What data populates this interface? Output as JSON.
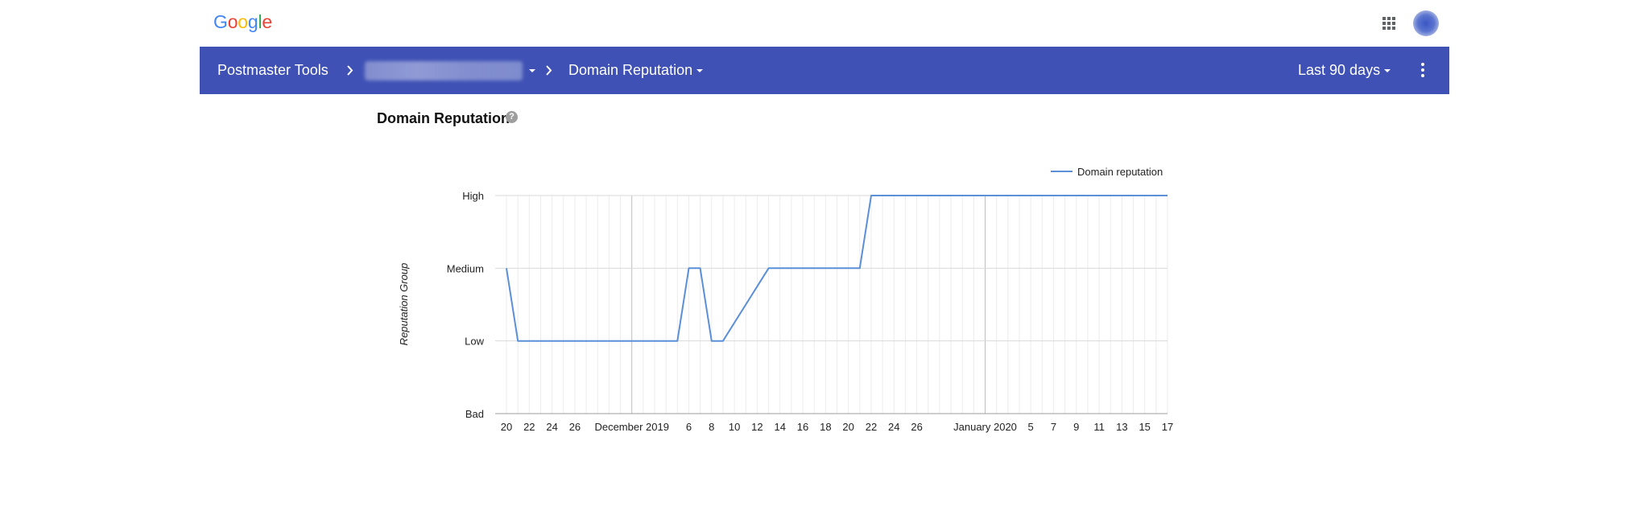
{
  "header": {
    "logo_text": "Google",
    "apps_icon": "apps-grid-icon",
    "avatar": "user-avatar"
  },
  "nav": {
    "product": "Postmaster Tools",
    "domain_value": "",
    "page": "Domain Reputation",
    "range": "Last 90 days",
    "more_icon": "more-vert-icon"
  },
  "section": {
    "title": "Domain Reputation",
    "help_icon": "help-icon"
  },
  "colors": {
    "nav_bg": "#3f51b5",
    "series_line": "#5b8fd8",
    "gridline": "#e0e0e0"
  },
  "chart_data": {
    "type": "line",
    "title": "",
    "ylabel": "Reputation Group",
    "xlabel": "",
    "y_categories": [
      "Bad",
      "Low",
      "Medium",
      "High"
    ],
    "x_tick_labels": [
      "20",
      "22",
      "24",
      "26",
      "December 2019",
      "6",
      "8",
      "10",
      "12",
      "14",
      "16",
      "18",
      "20",
      "22",
      "24",
      "26",
      "January 2020",
      "5",
      "7",
      "9",
      "11",
      "13",
      "15",
      "17"
    ],
    "x_range": [
      "2019-11-20",
      "2020-01-17"
    ],
    "legend_position": "top-right",
    "grid": true,
    "series": [
      {
        "name": "Domain reputation",
        "points": [
          [
            "2019-11-20",
            "Medium"
          ],
          [
            "2019-11-21",
            "Low"
          ],
          [
            "2019-12-05",
            "Low"
          ],
          [
            "2019-12-06",
            "Medium"
          ],
          [
            "2019-12-07",
            "Medium"
          ],
          [
            "2019-12-08",
            "Low"
          ],
          [
            "2019-12-09",
            "Low"
          ],
          [
            "2019-12-13",
            "Medium"
          ],
          [
            "2019-12-21",
            "Medium"
          ],
          [
            "2019-12-22",
            "High"
          ],
          [
            "2020-01-17",
            "High"
          ]
        ]
      }
    ]
  }
}
